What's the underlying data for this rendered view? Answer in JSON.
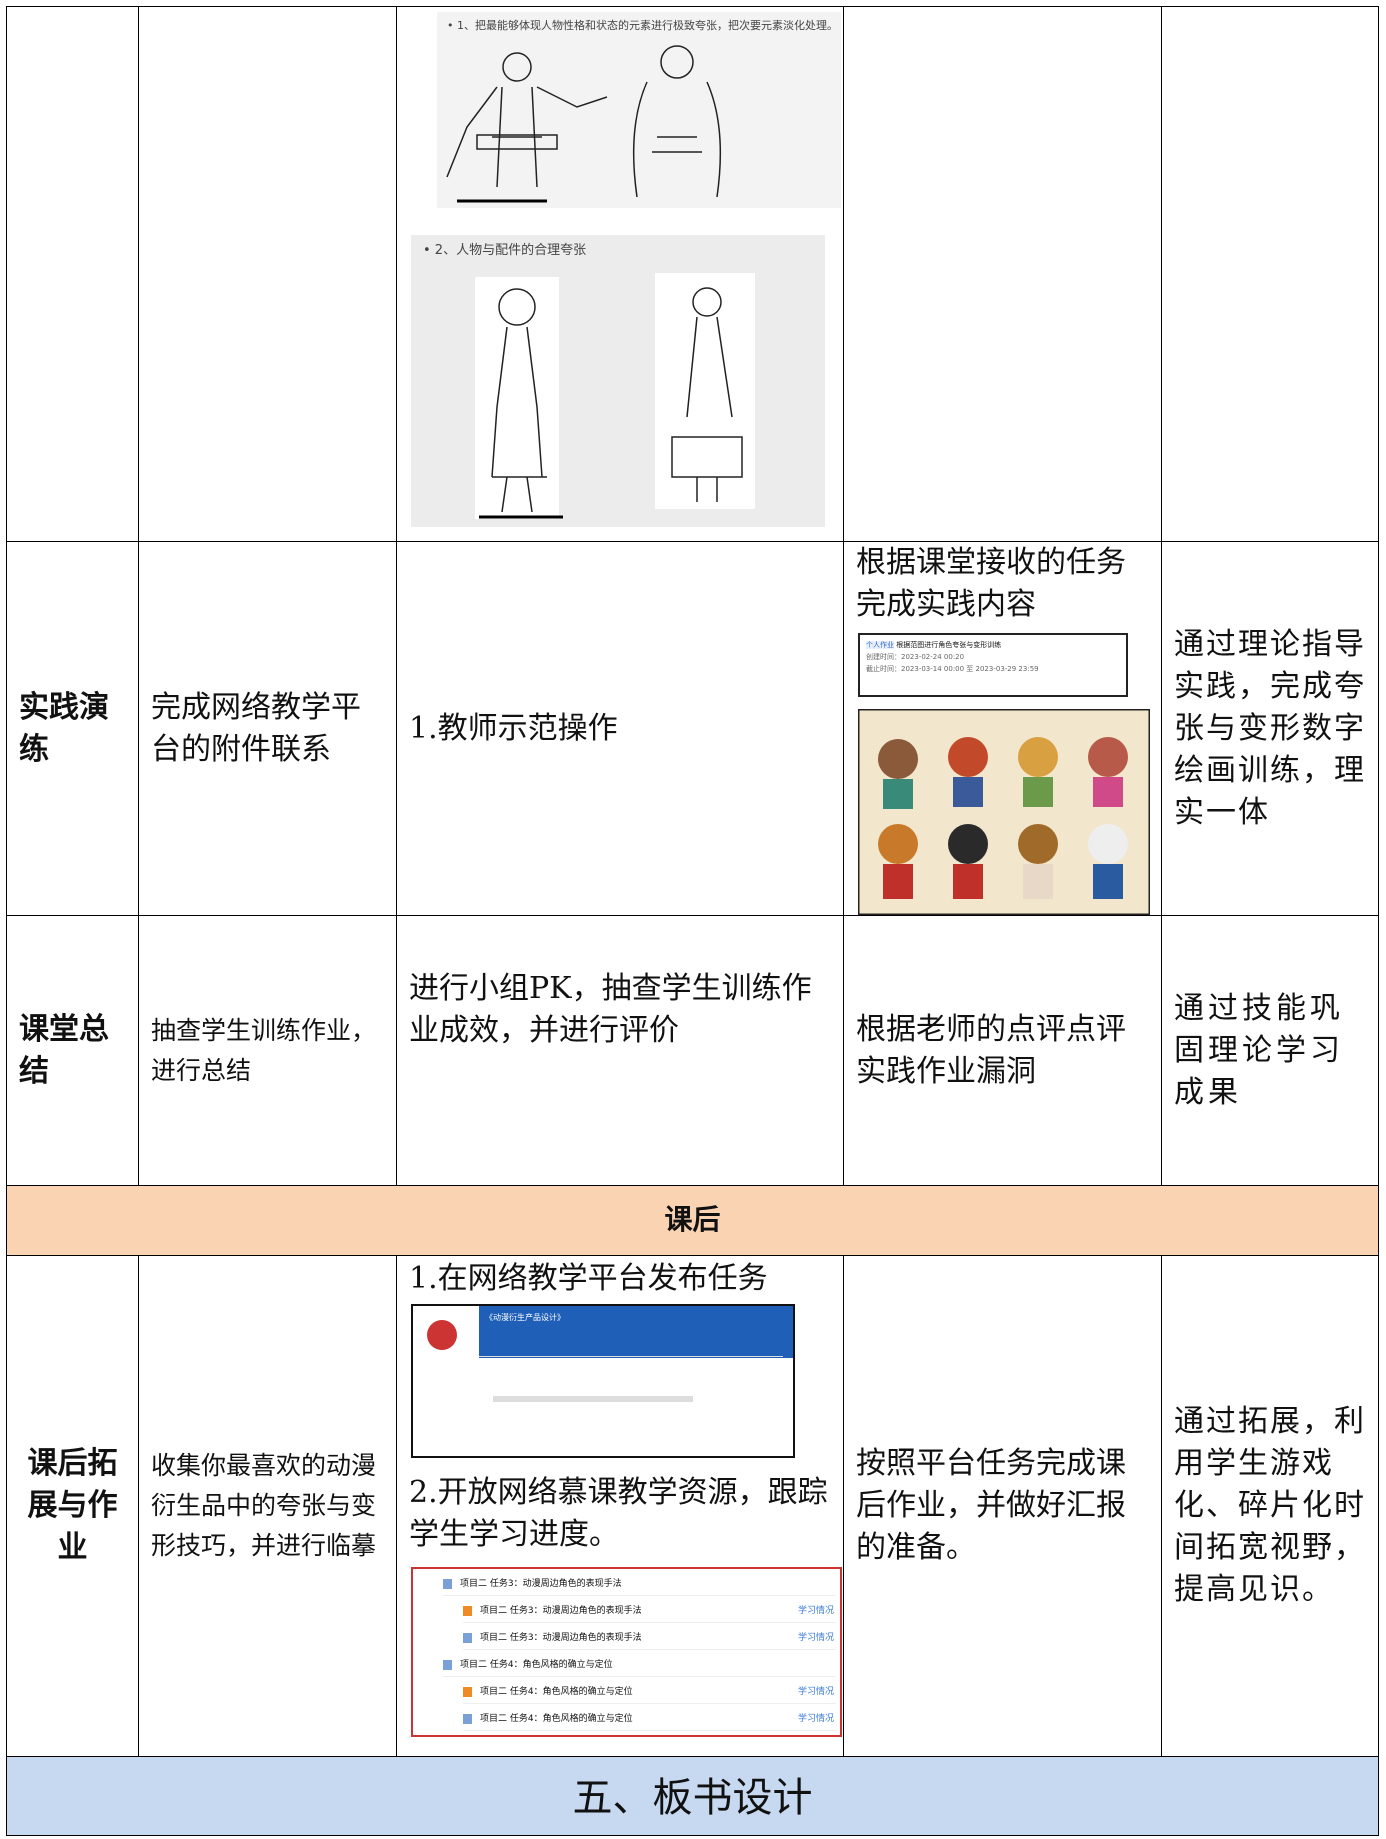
{
  "illustration": {
    "notes": [
      "• 1、把最能够体现人物性格和状态的元素进行极致夸张，把次要元素淡化处理。",
      "• 2、人物与配件的合理夸张"
    ]
  },
  "practice": {
    "stage": "实践演练",
    "content": "完成网络教学平台的附件联系",
    "teacher": "1.教师示范操作",
    "student": "根据课堂接收的任务完成实践内容",
    "task_card": {
      "tag": "个人作业",
      "title": "根据范图进行角色夸张与变形训练",
      "created": "创建时间：2023-02-24 00:20",
      "deadline": "截止时间：2023-03-14 00:00 至 2023-03-29 23:59"
    },
    "purpose": "通过理论指导实践，完成夸张与变形数字绘画训练，理实一体"
  },
  "summary": {
    "stage": "课堂总结",
    "content": "抽查学生训练作业，进行总结",
    "teacher": "进行小组PK，抽查学生训练作业成效，并进行评价",
    "student": "根据老师的点评点评实践作业漏洞",
    "purpose": "通过技能巩固理论学习成果"
  },
  "section_after": "课后",
  "extension": {
    "stage": "课后拓展与作业",
    "content": "收集你最喜欢的动漫衍生品中的夸张与变形技巧，并进行临摹",
    "teacher_steps": [
      "1.在网络教学平台发布任务",
      "2.开放网络慕课教学资源，跟踪学生学习进度。"
    ],
    "platform_title": "《动漫衍生产品设计》",
    "course_items": [
      "项目二 任务3：动漫周边角色的表现手法",
      "项目二 任务3：动漫周边角色的表现手法",
      "项目二 任务3：动漫周边角色的表现手法",
      "项目二 任务4：角色风格的确立与定位",
      "项目二 任务4：角色风格的确立与定位",
      "项目二 任务4：角色风格的确立与定位"
    ],
    "progress_link": "学习情况",
    "student": "按照平台任务完成课后作业，并做好汇报的准备。",
    "purpose": "通过拓展，利用学生游戏化、碎片化时间拓宽视野，提高见识。"
  },
  "next_section": "五、板书设计"
}
